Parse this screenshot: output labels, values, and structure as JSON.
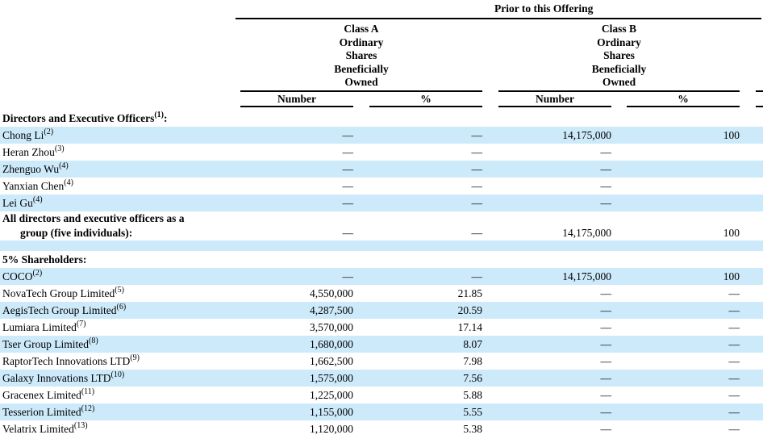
{
  "page": {
    "background_color": "#ffffff",
    "stripe_color": "#cdeafb",
    "text_color": "#000000"
  },
  "table": {
    "top_header": "Prior to this Offering",
    "column_groups": [
      {
        "id": "class-a",
        "header_lines": [
          "Class A",
          "Ordinary",
          "Shares",
          "Beneficially",
          "Owned"
        ],
        "sub_headers": [
          "Number",
          "%"
        ]
      },
      {
        "id": "class-b",
        "header_lines": [
          "Class B",
          "Ordinary",
          "Shares",
          "Beneficially",
          "Owned"
        ],
        "sub_headers": [
          "Number",
          "%"
        ]
      }
    ],
    "rows": [
      {
        "label": "Directors and Executive Officers",
        "sup": "(1)",
        "suffix": ":",
        "bold": true,
        "bg": "white",
        "cells": [
          "",
          "",
          "",
          ""
        ]
      },
      {
        "label": "Chong Li",
        "sup": "(2)",
        "bold": false,
        "bg": "blue",
        "cells": [
          "—",
          "—",
          "14,175,000",
          "100"
        ]
      },
      {
        "label": "Heran Zhou",
        "sup": "(3)",
        "bold": false,
        "bg": "white",
        "cells": [
          "—",
          "—",
          "—",
          ""
        ]
      },
      {
        "label": "Zhenguo Wu",
        "sup": "(4)",
        "bold": false,
        "bg": "blue",
        "cells": [
          "—",
          "—",
          "—",
          ""
        ]
      },
      {
        "label": "Yanxian Chen",
        "sup": "(4)",
        "bold": false,
        "bg": "white",
        "cells": [
          "—",
          "—",
          "—",
          ""
        ]
      },
      {
        "label": "Lei Gu",
        "sup": "(4)",
        "bold": false,
        "bg": "blue",
        "cells": [
          "—",
          "—",
          "—",
          ""
        ]
      },
      {
        "label": "All directors and executive officers as a",
        "label_line2": "group (five individuals):",
        "bold": true,
        "bg": "white",
        "two_line": true,
        "cells": [
          "—",
          "—",
          "14,175,000",
          "100"
        ]
      },
      {
        "blank": true,
        "bg": "blue"
      },
      {
        "label": "5% Shareholders:",
        "bold": true,
        "bg": "white",
        "cells": [
          "",
          "",
          "",
          ""
        ]
      },
      {
        "label": "COCO",
        "sup": "(2)",
        "bold": false,
        "bg": "blue",
        "cells": [
          "—",
          "—",
          "14,175,000",
          "100"
        ]
      },
      {
        "label": "NovaTech Group Limited",
        "sup": "(5)",
        "bold": false,
        "bg": "white",
        "cells": [
          "4,550,000",
          "21.85",
          "—",
          "—"
        ]
      },
      {
        "label": "AegisTech Group Limited",
        "sup": "(6)",
        "bold": false,
        "bg": "blue",
        "cells": [
          "4,287,500",
          "20.59",
          "—",
          "—"
        ]
      },
      {
        "label": "Lumiara Limited",
        "sup": "(7)",
        "bold": false,
        "bg": "white",
        "cells": [
          "3,570,000",
          "17.14",
          "—",
          "—"
        ]
      },
      {
        "label": "Tser Group Limited",
        "sup": "(8)",
        "bold": false,
        "bg": "blue",
        "cells": [
          "1,680,000",
          "8.07",
          "—",
          "—"
        ]
      },
      {
        "label": "RaptorTech Innovations LTD",
        "sup": "(9)",
        "bold": false,
        "bg": "white",
        "cells": [
          "1,662,500",
          "7.98",
          "—",
          "—"
        ]
      },
      {
        "label": "Galaxy Innovations LTD",
        "sup": "(10)",
        "bold": false,
        "bg": "blue",
        "cells": [
          "1,575,000",
          "7.56",
          "—",
          "—"
        ]
      },
      {
        "label": "Gracenex Limited",
        "sup": "(11)",
        "bold": false,
        "bg": "white",
        "cells": [
          "1,225,000",
          "5.88",
          "—",
          "—"
        ]
      },
      {
        "label": "Tesserion Limited",
        "sup": "(12)",
        "bold": false,
        "bg": "blue",
        "cells": [
          "1,155,000",
          "5.55",
          "—",
          "—"
        ]
      },
      {
        "label": "Velatrix Limited",
        "sup": "(13)",
        "bold": false,
        "bg": "white",
        "cells": [
          "1,120,000",
          "5.38",
          "—",
          "—"
        ]
      }
    ]
  }
}
